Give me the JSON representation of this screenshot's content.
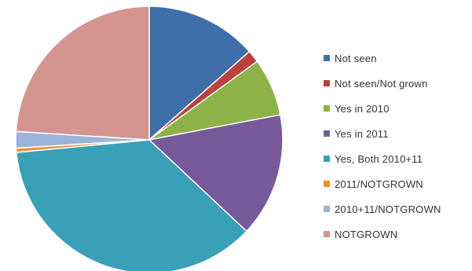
{
  "chart_data": {
    "type": "pie",
    "series": [
      {
        "name": "Not seen",
        "value": 13.5,
        "color": "#3f6fa8"
      },
      {
        "name": "Not seen/Not grown",
        "value": 1.5,
        "color": "#b8423e"
      },
      {
        "name": "Yes in 2010",
        "value": 7,
        "color": "#8db247"
      },
      {
        "name": "Yes in 2011",
        "value": 15,
        "color": "#775a9a"
      },
      {
        "name": "Yes, Both 2010+11",
        "value": 36.5,
        "color": "#3aa0b8"
      },
      {
        "name": "2011/NOTGROWN",
        "value": 0.5,
        "color": "#ef8f33"
      },
      {
        "name": "2010+11/NOTGROWN",
        "value": 2,
        "color": "#9db4da"
      },
      {
        "name": "NOTGROWN",
        "value": 24,
        "color": "#d49591"
      }
    ],
    "start_angle_deg": 0,
    "direction": "clockwise",
    "legend_position": "right"
  }
}
